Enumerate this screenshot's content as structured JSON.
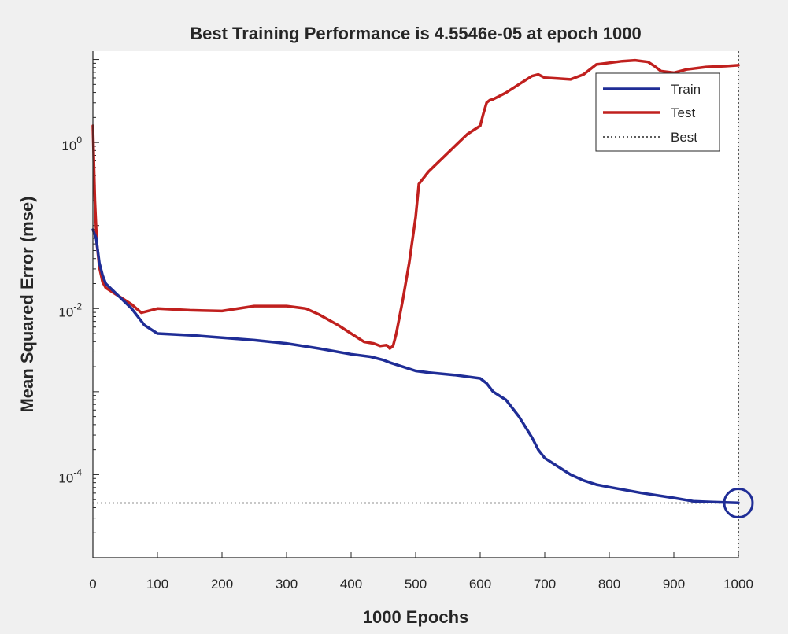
{
  "chart_data": {
    "type": "line",
    "title": "Best Training Performance is 4.5546e-05 at epoch 1000",
    "xlabel": "1000 Epochs",
    "ylabel": "Mean Squared Error  (mse)",
    "x_scale": "linear",
    "y_scale": "log",
    "xlim": [
      0,
      1000
    ],
    "ylim_log10": [
      -5,
      1.1
    ],
    "x_ticks": [
      0,
      100,
      200,
      300,
      400,
      500,
      600,
      700,
      800,
      900,
      1000
    ],
    "y_ticks": [
      {
        "log10": 0,
        "base": "10",
        "exp": "0"
      },
      {
        "log10": -2,
        "base": "10",
        "exp": "-2"
      },
      {
        "log10": -4,
        "base": "10",
        "exp": "-4"
      }
    ],
    "legend_position": "top-right",
    "series": [
      {
        "name": "Train",
        "color": "#1f2d96",
        "x": [
          0,
          5,
          10,
          15,
          20,
          40,
          60,
          80,
          100,
          150,
          200,
          250,
          300,
          350,
          400,
          430,
          450,
          460,
          480,
          500,
          520,
          560,
          600,
          610,
          620,
          640,
          660,
          680,
          690,
          700,
          720,
          740,
          760,
          780,
          800,
          850,
          900,
          930,
          960,
          1000
        ],
        "y_log10": [
          -1.05,
          -1.15,
          -1.45,
          -1.6,
          -1.7,
          -1.85,
          -2.0,
          -2.2,
          -2.3,
          -2.32,
          -2.35,
          -2.38,
          -2.42,
          -2.48,
          -2.55,
          -2.58,
          -2.62,
          -2.65,
          -2.7,
          -2.75,
          -2.77,
          -2.8,
          -2.84,
          -2.9,
          -3.0,
          -3.1,
          -3.3,
          -3.55,
          -3.7,
          -3.8,
          -3.9,
          -4.0,
          -4.07,
          -4.12,
          -4.15,
          -4.22,
          -4.28,
          -4.32,
          -4.33,
          -4.34
        ]
      },
      {
        "name": "Test",
        "color": "#c0201e",
        "x": [
          0,
          3,
          6,
          10,
          15,
          20,
          40,
          60,
          75,
          90,
          100,
          150,
          200,
          250,
          300,
          330,
          350,
          380,
          400,
          420,
          435,
          445,
          455,
          460,
          465,
          470,
          480,
          490,
          500,
          505,
          510,
          520,
          540,
          560,
          580,
          600,
          605,
          610,
          615,
          620,
          640,
          660,
          680,
          690,
          700,
          720,
          740,
          760,
          780,
          800,
          820,
          840,
          860,
          870,
          880,
          900,
          920,
          950,
          980,
          1000
        ],
        "y_log10": [
          0.2,
          -0.7,
          -1.2,
          -1.5,
          -1.68,
          -1.75,
          -1.85,
          -1.95,
          -2.05,
          -2.02,
          -2.0,
          -2.02,
          -2.03,
          -1.97,
          -1.97,
          -2.0,
          -2.07,
          -2.2,
          -2.3,
          -2.4,
          -2.42,
          -2.45,
          -2.44,
          -2.48,
          -2.45,
          -2.3,
          -1.9,
          -1.45,
          -0.9,
          -0.5,
          -0.45,
          -0.35,
          -0.2,
          -0.05,
          0.1,
          0.2,
          0.35,
          0.48,
          0.51,
          0.52,
          0.6,
          0.7,
          0.8,
          0.82,
          0.78,
          0.77,
          0.76,
          0.82,
          0.94,
          0.96,
          0.98,
          0.99,
          0.97,
          0.92,
          0.86,
          0.84,
          0.88,
          0.91,
          0.92,
          0.93
        ]
      }
    ],
    "best": {
      "label": "Best",
      "epoch": 1000,
      "value": 4.5546e-05,
      "y_log10": -4.342,
      "color": "#1f2d96"
    }
  }
}
